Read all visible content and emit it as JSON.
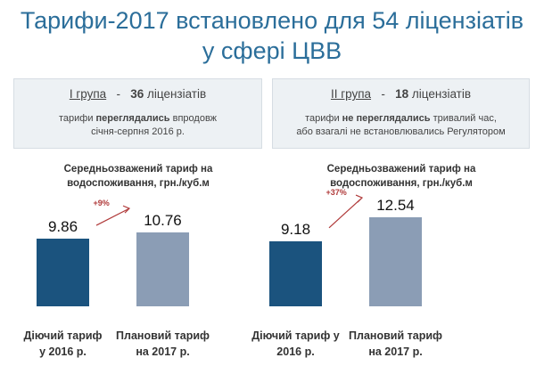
{
  "title": {
    "line1": "Тарифи-2017 встановлено для 54 ліцензіатів",
    "line2": "у  сфері  ЦВВ"
  },
  "groups": [
    {
      "name": "I група",
      "dash": "-",
      "count": "36",
      "count_label": " ліцензіатів",
      "desc_pre": "тарифи ",
      "desc_bold": "переглядались",
      "desc_post": " впродовж",
      "desc_line2": "січня-серпня 2016 р."
    },
    {
      "name": "II група",
      "dash": "-",
      "count": "18",
      "count_label": " ліцензіатів",
      "desc_pre": "тарифи ",
      "desc_bold": "не переглядались",
      "desc_post": " тривалий час,",
      "desc_line2": "або взагалі не встановлювались Регулятором"
    }
  ],
  "colors": {
    "title": "#2b6e9a",
    "bar_2016": "#1b537e",
    "bar_2017": "#8b9db5",
    "change": "#b03a3a"
  },
  "chart_data": [
    {
      "type": "bar",
      "title": "Середньозважений тариф  на водоспоживання, грн./куб.м",
      "title_line1": "Середньозважений тариф  на",
      "title_line2": "водоспоживання, грн./куб.м",
      "categories": [
        "Діючий тариф у 2016 р.",
        "Плановий тариф на 2017 р."
      ],
      "category_lines": [
        [
          "Діючий тариф",
          "у 2016 р."
        ],
        [
          "Плановий тариф",
          "на 2017 р."
        ]
      ],
      "values": [
        9.86,
        10.76
      ],
      "value_labels": [
        "9.86",
        "10.76"
      ],
      "change": "+9%",
      "ylim": [
        0,
        14.8
      ],
      "grid": false
    },
    {
      "type": "bar",
      "title": "Середньозважений тариф  на водоспоживання, грн./куб.м",
      "title_line1": "Середньозважений тариф  на",
      "title_line2": "водоспоживання, грн./куб.м",
      "categories": [
        "Діючий тариф у 2016 р.",
        "Плановий тариф на 2017 р."
      ],
      "category_lines": [
        [
          "Діючий тариф у",
          "2016 р."
        ],
        [
          "Плановий тариф",
          "на 2017 р."
        ]
      ],
      "values": [
        9.18,
        12.54
      ],
      "value_labels": [
        "9.18",
        "12.54"
      ],
      "change": "+37%",
      "ylim": [
        0,
        14.3
      ],
      "grid": false
    }
  ]
}
